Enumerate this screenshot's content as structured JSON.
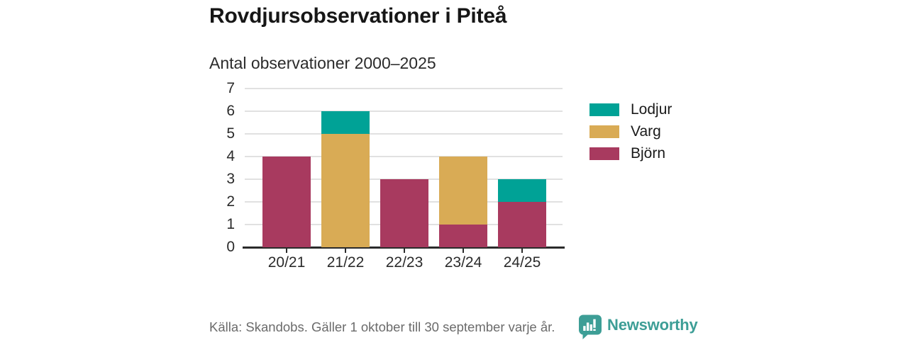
{
  "header": {
    "title": "Rovdjursobservationer i Piteå",
    "subtitle": "Antal observationer 2000–2025"
  },
  "chart_data": {
    "type": "bar",
    "stacked": true,
    "title": "Rovdjursobservationer i Piteå",
    "subtitle": "Antal observationer 2000–2025",
    "categories": [
      "20/21",
      "21/22",
      "22/23",
      "23/24",
      "24/25"
    ],
    "series": [
      {
        "name": "Lodjur",
        "color": "#00a296",
        "values": [
          0,
          1,
          0,
          0,
          1
        ]
      },
      {
        "name": "Varg",
        "color": "#d9ab55",
        "values": [
          0,
          5,
          0,
          3,
          0
        ]
      },
      {
        "name": "Björn",
        "color": "#a83a5f",
        "values": [
          4,
          0,
          3,
          1,
          2
        ]
      }
    ],
    "stack_order_bottom_to_top": [
      "Björn",
      "Varg",
      "Lodjur"
    ],
    "totals": [
      4,
      6,
      3,
      4,
      3
    ],
    "ylim": [
      0,
      7
    ],
    "yticks": [
      0,
      1,
      2,
      3,
      4,
      5,
      6,
      7
    ],
    "grid": true,
    "legend_position": "right"
  },
  "footer": {
    "source": "Källa: Skandobs. Gäller 1 oktober till 30 september varje år.",
    "brand": "Newsworthy",
    "brand_icon": "newsworthy-bar-chart-bubble-icon",
    "brand_color": "#3d9e96"
  },
  "colors": {
    "lodjur_teal": "#00a296",
    "varg_gold": "#d9ab55",
    "bjorn_maroon": "#a83a5f",
    "axis": "#2b2b2b",
    "gridline": "#e1e1e1",
    "title_text": "#161616",
    "muted_text": "#6b6b6b",
    "brand_teal": "#3d9e96"
  }
}
